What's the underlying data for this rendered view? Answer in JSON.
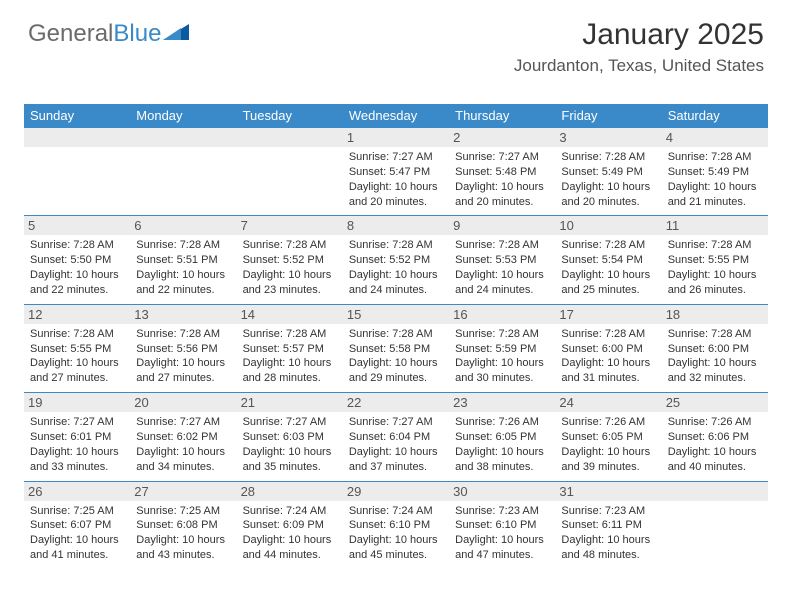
{
  "logo": {
    "text_general": "General",
    "text_blue": "Blue"
  },
  "header": {
    "month_title": "January 2025",
    "location": "Jourdanton, Texas, United States"
  },
  "colors": {
    "header_bg": "#3a8ac9",
    "date_strip_bg": "#ececec",
    "text_primary": "#333333",
    "text_secondary": "#555555",
    "logo_gray": "#6b6b6b",
    "logo_blue": "#3a8ac9",
    "background": "#ffffff"
  },
  "days_of_week": [
    "Sunday",
    "Monday",
    "Tuesday",
    "Wednesday",
    "Thursday",
    "Friday",
    "Saturday"
  ],
  "weeks": [
    [
      {
        "date": "",
        "sunrise": "",
        "sunset": "",
        "daylight": ""
      },
      {
        "date": "",
        "sunrise": "",
        "sunset": "",
        "daylight": ""
      },
      {
        "date": "",
        "sunrise": "",
        "sunset": "",
        "daylight": ""
      },
      {
        "date": "1",
        "sunrise": "7:27 AM",
        "sunset": "5:47 PM",
        "daylight": "10 hours and 20 minutes."
      },
      {
        "date": "2",
        "sunrise": "7:27 AM",
        "sunset": "5:48 PM",
        "daylight": "10 hours and 20 minutes."
      },
      {
        "date": "3",
        "sunrise": "7:28 AM",
        "sunset": "5:49 PM",
        "daylight": "10 hours and 20 minutes."
      },
      {
        "date": "4",
        "sunrise": "7:28 AM",
        "sunset": "5:49 PM",
        "daylight": "10 hours and 21 minutes."
      }
    ],
    [
      {
        "date": "5",
        "sunrise": "7:28 AM",
        "sunset": "5:50 PM",
        "daylight": "10 hours and 22 minutes."
      },
      {
        "date": "6",
        "sunrise": "7:28 AM",
        "sunset": "5:51 PM",
        "daylight": "10 hours and 22 minutes."
      },
      {
        "date": "7",
        "sunrise": "7:28 AM",
        "sunset": "5:52 PM",
        "daylight": "10 hours and 23 minutes."
      },
      {
        "date": "8",
        "sunrise": "7:28 AM",
        "sunset": "5:52 PM",
        "daylight": "10 hours and 24 minutes."
      },
      {
        "date": "9",
        "sunrise": "7:28 AM",
        "sunset": "5:53 PM",
        "daylight": "10 hours and 24 minutes."
      },
      {
        "date": "10",
        "sunrise": "7:28 AM",
        "sunset": "5:54 PM",
        "daylight": "10 hours and 25 minutes."
      },
      {
        "date": "11",
        "sunrise": "7:28 AM",
        "sunset": "5:55 PM",
        "daylight": "10 hours and 26 minutes."
      }
    ],
    [
      {
        "date": "12",
        "sunrise": "7:28 AM",
        "sunset": "5:55 PM",
        "daylight": "10 hours and 27 minutes."
      },
      {
        "date": "13",
        "sunrise": "7:28 AM",
        "sunset": "5:56 PM",
        "daylight": "10 hours and 27 minutes."
      },
      {
        "date": "14",
        "sunrise": "7:28 AM",
        "sunset": "5:57 PM",
        "daylight": "10 hours and 28 minutes."
      },
      {
        "date": "15",
        "sunrise": "7:28 AM",
        "sunset": "5:58 PM",
        "daylight": "10 hours and 29 minutes."
      },
      {
        "date": "16",
        "sunrise": "7:28 AM",
        "sunset": "5:59 PM",
        "daylight": "10 hours and 30 minutes."
      },
      {
        "date": "17",
        "sunrise": "7:28 AM",
        "sunset": "6:00 PM",
        "daylight": "10 hours and 31 minutes."
      },
      {
        "date": "18",
        "sunrise": "7:28 AM",
        "sunset": "6:00 PM",
        "daylight": "10 hours and 32 minutes."
      }
    ],
    [
      {
        "date": "19",
        "sunrise": "7:27 AM",
        "sunset": "6:01 PM",
        "daylight": "10 hours and 33 minutes."
      },
      {
        "date": "20",
        "sunrise": "7:27 AM",
        "sunset": "6:02 PM",
        "daylight": "10 hours and 34 minutes."
      },
      {
        "date": "21",
        "sunrise": "7:27 AM",
        "sunset": "6:03 PM",
        "daylight": "10 hours and 35 minutes."
      },
      {
        "date": "22",
        "sunrise": "7:27 AM",
        "sunset": "6:04 PM",
        "daylight": "10 hours and 37 minutes."
      },
      {
        "date": "23",
        "sunrise": "7:26 AM",
        "sunset": "6:05 PM",
        "daylight": "10 hours and 38 minutes."
      },
      {
        "date": "24",
        "sunrise": "7:26 AM",
        "sunset": "6:05 PM",
        "daylight": "10 hours and 39 minutes."
      },
      {
        "date": "25",
        "sunrise": "7:26 AM",
        "sunset": "6:06 PM",
        "daylight": "10 hours and 40 minutes."
      }
    ],
    [
      {
        "date": "26",
        "sunrise": "7:25 AM",
        "sunset": "6:07 PM",
        "daylight": "10 hours and 41 minutes."
      },
      {
        "date": "27",
        "sunrise": "7:25 AM",
        "sunset": "6:08 PM",
        "daylight": "10 hours and 43 minutes."
      },
      {
        "date": "28",
        "sunrise": "7:24 AM",
        "sunset": "6:09 PM",
        "daylight": "10 hours and 44 minutes."
      },
      {
        "date": "29",
        "sunrise": "7:24 AM",
        "sunset": "6:10 PM",
        "daylight": "10 hours and 45 minutes."
      },
      {
        "date": "30",
        "sunrise": "7:23 AM",
        "sunset": "6:10 PM",
        "daylight": "10 hours and 47 minutes."
      },
      {
        "date": "31",
        "sunrise": "7:23 AM",
        "sunset": "6:11 PM",
        "daylight": "10 hours and 48 minutes."
      },
      {
        "date": "",
        "sunrise": "",
        "sunset": "",
        "daylight": ""
      }
    ]
  ],
  "labels": {
    "sunrise": "Sunrise:",
    "sunset": "Sunset:",
    "daylight": "Daylight:"
  }
}
